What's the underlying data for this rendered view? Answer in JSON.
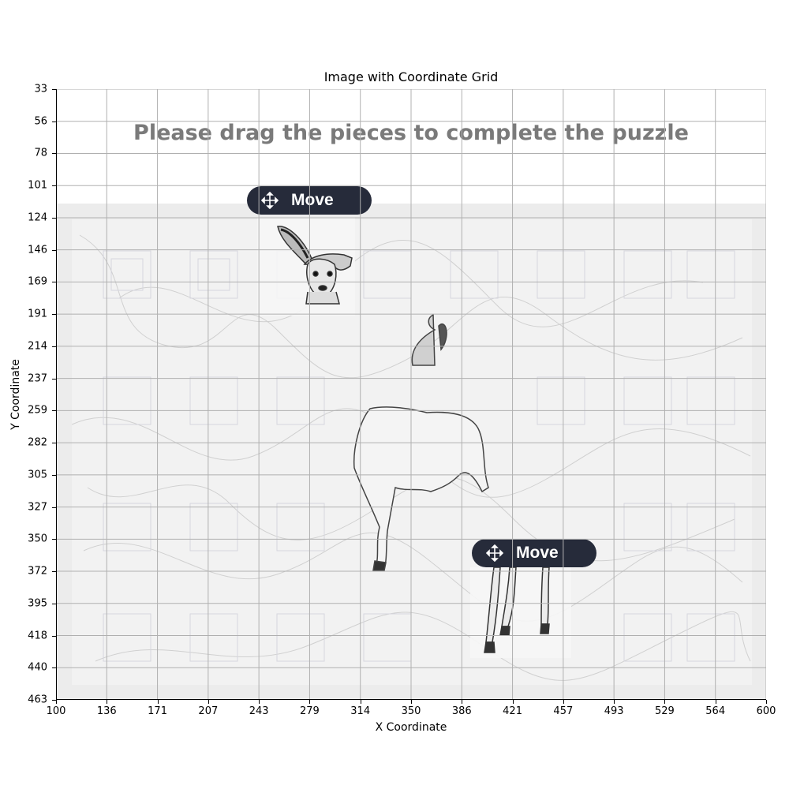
{
  "figure": {
    "title": "Image with Coordinate Grid",
    "xlabel": "X Coordinate",
    "ylabel": "Y Coordinate",
    "x_ticks": [
      "100",
      "136",
      "171",
      "207",
      "243",
      "279",
      "314",
      "350",
      "386",
      "421",
      "457",
      "493",
      "529",
      "564",
      "600"
    ],
    "y_ticks": [
      "33",
      "56",
      "78",
      "101",
      "124",
      "146",
      "169",
      "191",
      "214",
      "237",
      "259",
      "282",
      "305",
      "327",
      "350",
      "372",
      "395",
      "418",
      "440",
      "463"
    ],
    "grid": true
  },
  "captcha": {
    "instruction": "Please drag the pieces to complete the puzzle",
    "pieces": [
      {
        "label": "Move",
        "icon": "move-arrows-icon",
        "content": "deer-head-piece"
      },
      {
        "label": "Move",
        "icon": "move-arrows-icon",
        "content": "deer-legs-piece"
      }
    ],
    "target": "deer-body-silhouette"
  },
  "colors": {
    "button_bg": "#262b3a",
    "instruction_text": "#7a7a7a",
    "captcha_bg": "#ececec",
    "grid_line": "#b0b0b0"
  }
}
